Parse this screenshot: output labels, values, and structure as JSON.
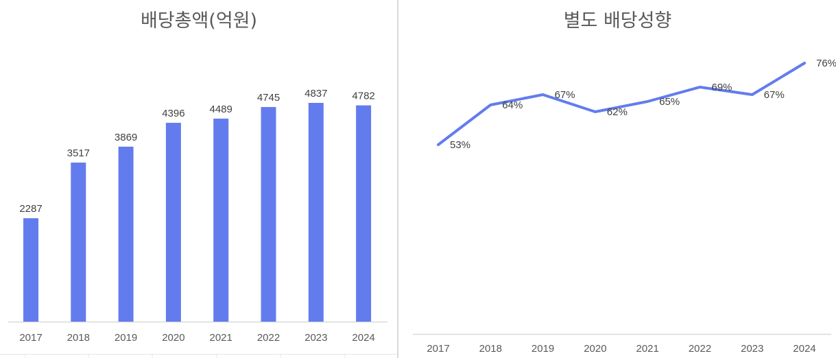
{
  "chart_data": [
    {
      "type": "bar",
      "title": "배당총액(억원)",
      "categories": [
        "2017",
        "2018",
        "2019",
        "2020",
        "2021",
        "2022",
        "2023",
        "2024"
      ],
      "values": [
        2287,
        3517,
        3869,
        4396,
        4489,
        4745,
        4837,
        4782
      ],
      "xlabel": "",
      "ylabel": "",
      "ylim": [
        0,
        5100
      ],
      "grid": false,
      "legend": null,
      "color": "#637ced"
    },
    {
      "type": "line",
      "title": "별도 배당성향",
      "categories": [
        "2017",
        "2018",
        "2019",
        "2020",
        "2021",
        "2022",
        "2023",
        "2024"
      ],
      "values": [
        53,
        64,
        67,
        62,
        65,
        69,
        67,
        76
      ],
      "labels": [
        "53%",
        "64%",
        "67%",
        "62%",
        "65%",
        "69%",
        "67%",
        "76%"
      ],
      "xlabel": "",
      "ylabel": "",
      "ylim": [
        0,
        79
      ],
      "grid": false,
      "legend": null,
      "color": "#637ced"
    }
  ]
}
